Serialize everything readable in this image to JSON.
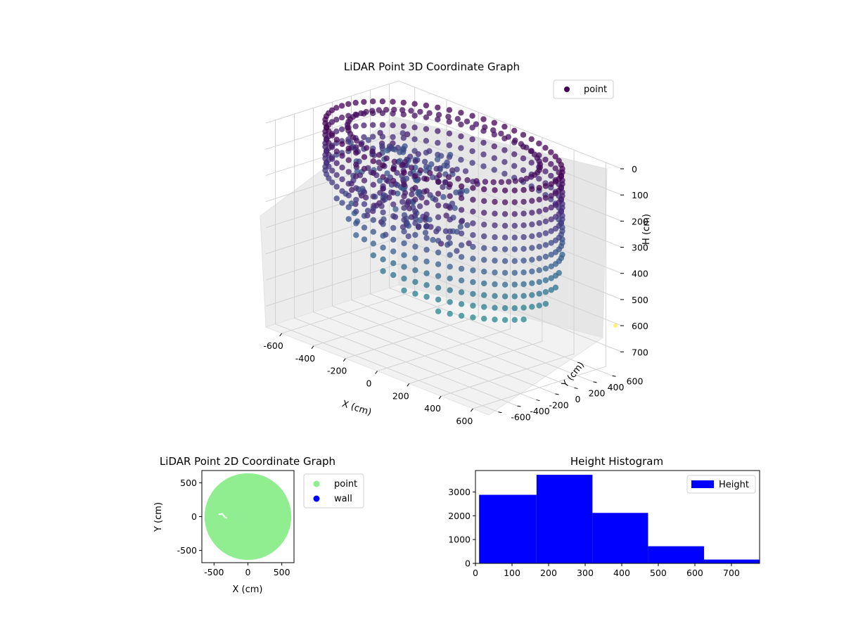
{
  "chart_data": [
    {
      "type": "scatter3d",
      "title": "LiDAR Point 3D Coordinate Graph",
      "xlabel": "X (cm)",
      "ylabel": "Y (cm)",
      "zlabel": "H (cm)",
      "xticks": [
        "-600",
        "-400",
        "-200",
        "0",
        "200",
        "400",
        "600"
      ],
      "yticks": [
        "-600",
        "-400",
        "-200",
        "0",
        "200",
        "400",
        "600"
      ],
      "zticks": [
        "0",
        "100",
        "200",
        "300",
        "400",
        "500",
        "600",
        "700"
      ],
      "xlim": [
        -700,
        700
      ],
      "ylim": [
        -700,
        700
      ],
      "zlim": [
        0,
        780
      ],
      "z_inverted": true,
      "grid": true,
      "legend": {
        "placement": "upper-right",
        "entries": [
          {
            "name": "point",
            "color": "#440154"
          }
        ]
      },
      "colormap": "viridis",
      "shape": {
        "outer_radius": 640,
        "inner_radius": 520,
        "top_height": 0,
        "wall_height_range": [
          0,
          760
        ],
        "clutter_near": [
          -350,
          0
        ]
      }
    },
    {
      "type": "scatter",
      "title": "LiDAR Point 2D Coordinate Graph",
      "xlabel": "X (cm)",
      "ylabel": "Y (cm)",
      "xticks": [
        -500,
        0,
        500
      ],
      "yticks": [
        -500,
        0,
        500
      ],
      "xlim": [
        -680,
        680
      ],
      "ylim": [
        -680,
        680
      ],
      "legend": {
        "placement": "upper-right-outside",
        "entries": [
          {
            "name": "point",
            "color": "#90ee90"
          },
          {
            "name": "wall",
            "color": "#0000ff"
          }
        ]
      },
      "disc": {
        "center": [
          0,
          0
        ],
        "radius": 640,
        "color": "#90ee90"
      },
      "gap_near": [
        -370,
        0
      ]
    },
    {
      "type": "bar",
      "title": "Height Histogram",
      "xlabel": "",
      "ylabel": "",
      "bins": [
        {
          "x0": 10,
          "x1": 167,
          "count": 2880
        },
        {
          "x0": 167,
          "x1": 320,
          "count": 3720
        },
        {
          "x0": 320,
          "x1": 472,
          "count": 2120
        },
        {
          "x0": 472,
          "x1": 625,
          "count": 720
        },
        {
          "x0": 625,
          "x1": 777,
          "count": 160
        }
      ],
      "xlim": [
        0,
        777
      ],
      "ylim": [
        0,
        3900
      ],
      "xticks": [
        0,
        100,
        200,
        300,
        400,
        500,
        600,
        700
      ],
      "yticks": [
        0,
        1000,
        2000,
        3000
      ],
      "legend": {
        "placement": "upper-right",
        "entries": [
          {
            "name": "Height",
            "color": "#0000ff"
          }
        ]
      }
    }
  ]
}
